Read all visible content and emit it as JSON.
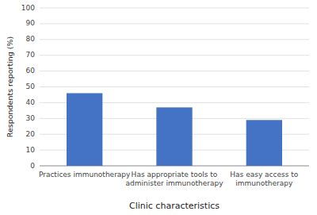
{
  "chart_data": {
    "type": "bar",
    "categories": [
      "Practices immunotherapy",
      "Has appropriate tools to\nadminister immunotherapy",
      "Has easy access to\nimmunotherapy"
    ],
    "values": [
      46,
      37,
      29
    ],
    "color": "#4472C4",
    "xlabel": "Clinic characteristics",
    "ylabel": "Respondents reporting (%)",
    "ylim": [
      0,
      100
    ],
    "yticks": [
      0,
      10,
      20,
      30,
      40,
      50,
      60,
      70,
      80,
      90,
      100
    ],
    "grid": true
  }
}
